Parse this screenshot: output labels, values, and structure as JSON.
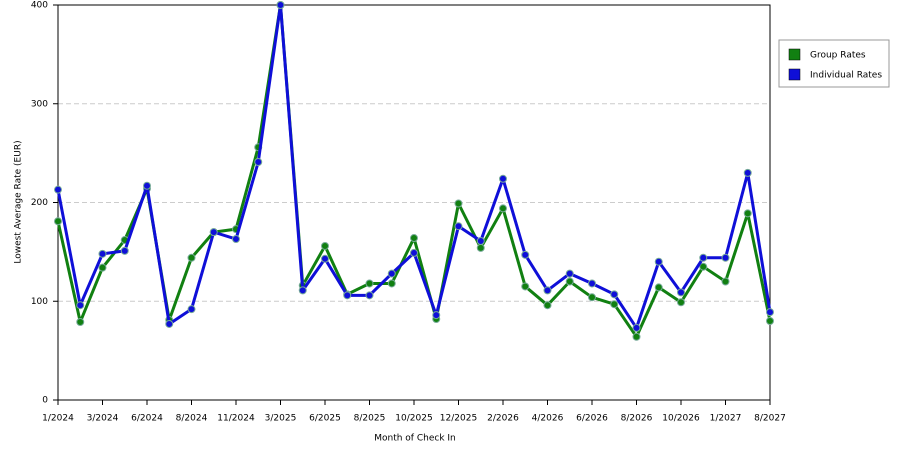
{
  "chart_data": {
    "type": "line",
    "x_label": "Month of Check In",
    "y_label": "Lowest Average Rate (EUR)",
    "categories": [
      "1/2024",
      null,
      "3/2024",
      null,
      "6/2024",
      null,
      "8/2024",
      null,
      "11/2024",
      null,
      "3/2025",
      null,
      "6/2025",
      null,
      "8/2025",
      null,
      "10/2025",
      null,
      "12/2025",
      null,
      "2/2026",
      null,
      "4/2026",
      null,
      "6/2026",
      null,
      "8/2026",
      null,
      "10/2026",
      null,
      "1/2027",
      null,
      "8/2027"
    ],
    "series": [
      {
        "name": "Group Rates",
        "color": "#118011",
        "values": [
          181,
          79,
          134,
          162,
          214,
          81,
          144,
          170,
          173,
          256,
          400,
          116,
          156,
          107,
          118,
          118,
          164,
          82,
          199,
          154,
          194,
          115,
          96,
          120,
          104,
          97,
          64,
          114,
          99,
          135,
          120,
          189,
          80
        ]
      },
      {
        "name": "Individual Rates",
        "color": "#0f0fd8",
        "values": [
          213,
          96,
          148,
          151,
          217,
          77,
          92,
          170,
          163,
          241,
          400,
          111,
          143,
          106,
          106,
          128,
          149,
          86,
          176,
          161,
          224,
          147,
          111,
          128,
          118,
          107,
          73,
          140,
          109,
          144,
          144,
          230,
          89
        ]
      }
    ],
    "ylim": [
      0,
      400
    ],
    "yticks": [
      0,
      100,
      200,
      300,
      400
    ],
    "grid": true,
    "legend": "right"
  }
}
